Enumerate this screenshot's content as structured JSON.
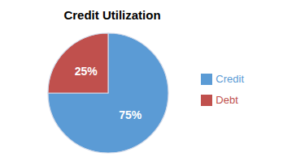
{
  "chart_data": {
    "type": "pie",
    "title": "Credit Utilization",
    "categories": [
      "Credit",
      "Debt"
    ],
    "values": [
      75,
      25
    ],
    "value_labels": [
      "75%",
      "25%"
    ],
    "colors": [
      "#5B9BD5",
      "#C0504D"
    ],
    "data_labels": true,
    "legend": "right"
  }
}
